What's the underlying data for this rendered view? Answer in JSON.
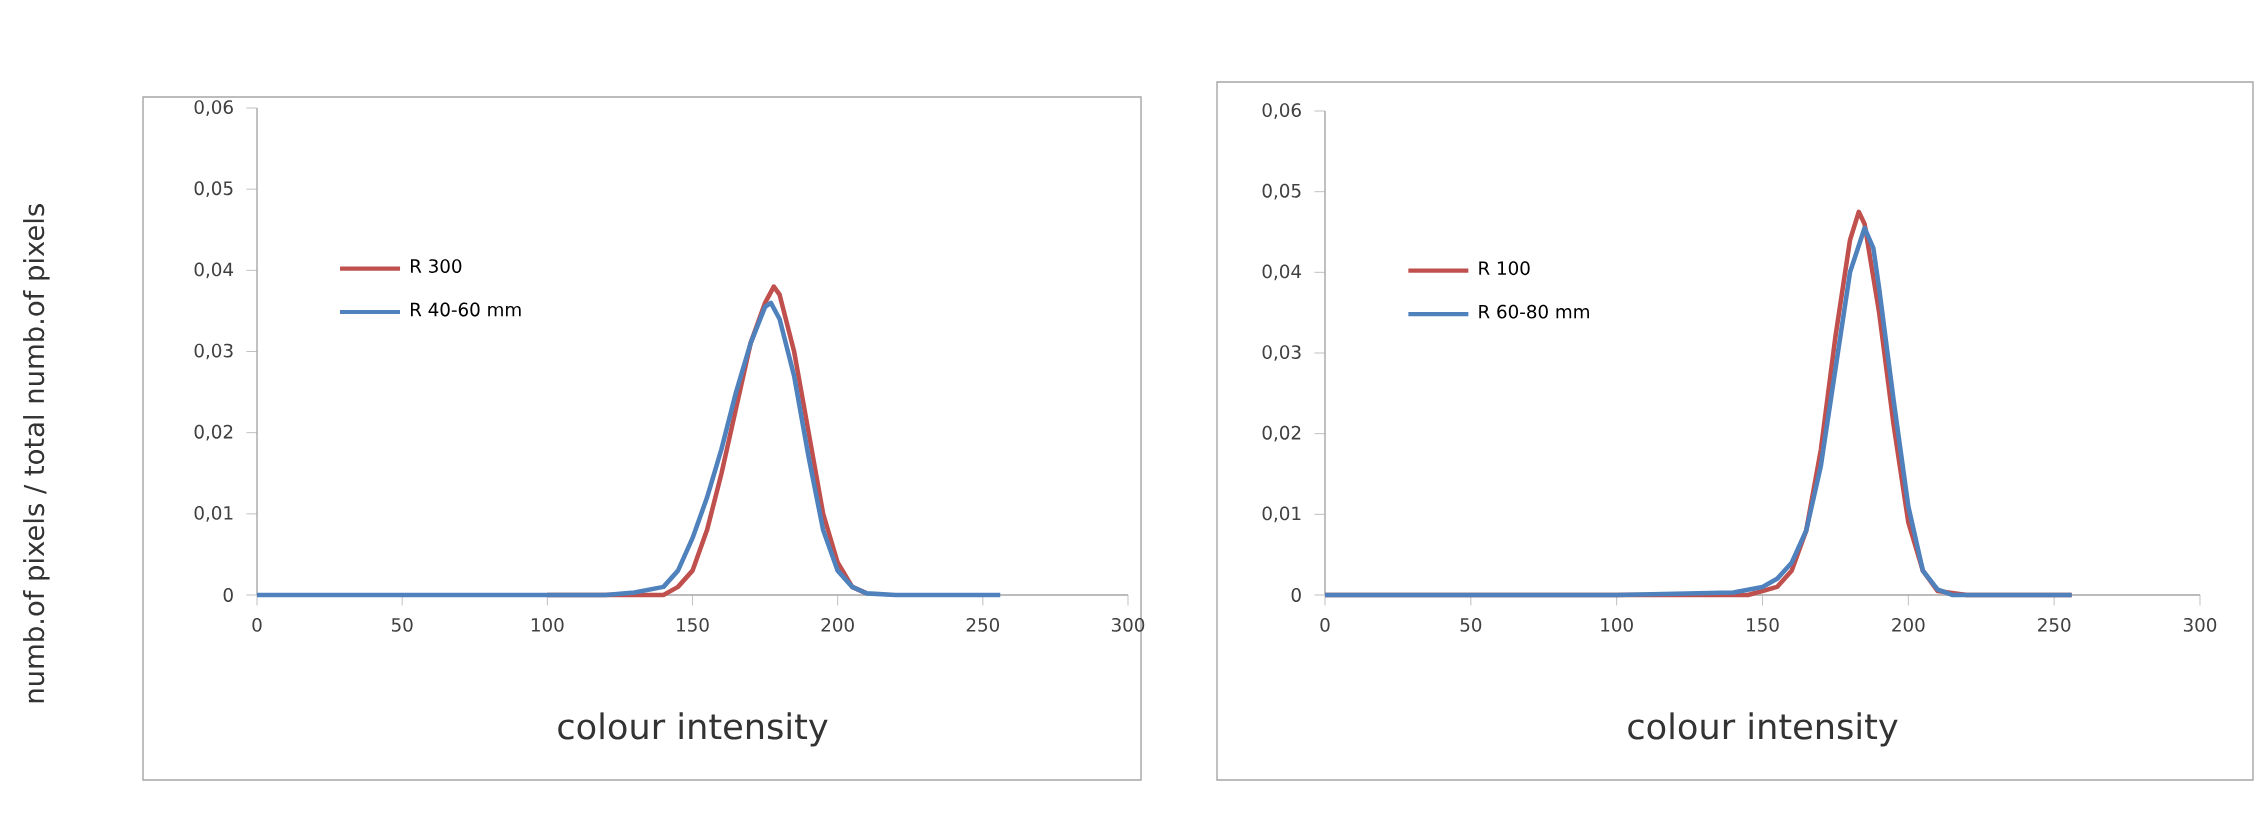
{
  "chart_data": [
    {
      "type": "line",
      "xlabel": "colour intensity",
      "ylabel": "numb.of pixels / total numb.of pixels",
      "xlim": [
        0,
        300
      ],
      "xticks": [
        0,
        50,
        100,
        150,
        200,
        250,
        300
      ],
      "ylim": [
        0,
        0.06
      ],
      "yticks": [
        0,
        {
          "value": 0.01,
          "label": "0,01"
        },
        {
          "value": 0.02,
          "label": "0,02"
        },
        {
          "value": 0.03,
          "label": "0,03"
        },
        {
          "value": 0.04,
          "label": "0,04"
        },
        {
          "value": 0.05,
          "label": "0,05"
        },
        {
          "value": 0.06,
          "label": "0,06"
        }
      ],
      "legend": "left",
      "grid": false,
      "line_style": "solid",
      "series": [
        {
          "name": "R 300",
          "color": "#c0504d",
          "x": [
            100,
            140,
            145,
            150,
            155,
            160,
            165,
            170,
            175,
            178,
            180,
            185,
            190,
            195,
            200,
            205,
            210
          ],
          "values": [
            0,
            0,
            0.001,
            0.003,
            0.008,
            0.015,
            0.023,
            0.031,
            0.036,
            0.038,
            0.037,
            0.03,
            0.02,
            0.01,
            0.004,
            0.001,
            0.0002
          ]
        },
        {
          "name": "R 40-60 mm",
          "color": "#4f81bd",
          "x": [
            0,
            50,
            100,
            120,
            130,
            140,
            145,
            150,
            155,
            160,
            165,
            170,
            175,
            177,
            180,
            185,
            190,
            195,
            200,
            205,
            210,
            220,
            256
          ],
          "values": [
            0,
            0,
            0,
            0,
            0.0003,
            0.001,
            0.003,
            0.007,
            0.012,
            0.018,
            0.025,
            0.031,
            0.0355,
            0.036,
            0.034,
            0.027,
            0.017,
            0.008,
            0.003,
            0.001,
            0.0002,
            0,
            0
          ]
        }
      ]
    },
    {
      "type": "line",
      "xlabel": "colour intensity",
      "xlim": [
        0,
        300
      ],
      "xticks": [
        0,
        50,
        100,
        150,
        200,
        250,
        300
      ],
      "ylim": [
        0,
        0.06
      ],
      "yticks": [
        0,
        {
          "value": 0.01,
          "label": "0,01"
        },
        {
          "value": 0.02,
          "label": "0,02"
        },
        {
          "value": 0.03,
          "label": "0,03"
        },
        {
          "value": 0.04,
          "label": "0,04"
        },
        {
          "value": 0.05,
          "label": "0,05"
        },
        {
          "value": 0.06,
          "label": "0,06"
        }
      ],
      "legend": "left",
      "grid": false,
      "line_style": "solid",
      "series": [
        {
          "name": "R 100",
          "color": "#c0504d",
          "x": [
            0,
            50,
            100,
            145,
            150,
            155,
            160,
            165,
            170,
            175,
            180,
            183,
            185,
            190,
            195,
            200,
            205,
            210,
            220,
            256
          ],
          "values": [
            0,
            0,
            0,
            0,
            0.0005,
            0.001,
            0.003,
            0.008,
            0.018,
            0.032,
            0.044,
            0.0475,
            0.046,
            0.035,
            0.021,
            0.009,
            0.003,
            0.0005,
            0,
            0
          ]
        },
        {
          "name": "R 60-80 mm",
          "color": "#4f81bd",
          "x": [
            0,
            50,
            100,
            140,
            150,
            155,
            160,
            165,
            170,
            175,
            180,
            185,
            188,
            190,
            195,
            200,
            205,
            210,
            215,
            256
          ],
          "values": [
            0,
            0,
            0,
            0.0003,
            0.001,
            0.002,
            0.004,
            0.008,
            0.016,
            0.028,
            0.04,
            0.0455,
            0.043,
            0.038,
            0.024,
            0.011,
            0.003,
            0.0007,
            0,
            0
          ]
        }
      ]
    }
  ]
}
